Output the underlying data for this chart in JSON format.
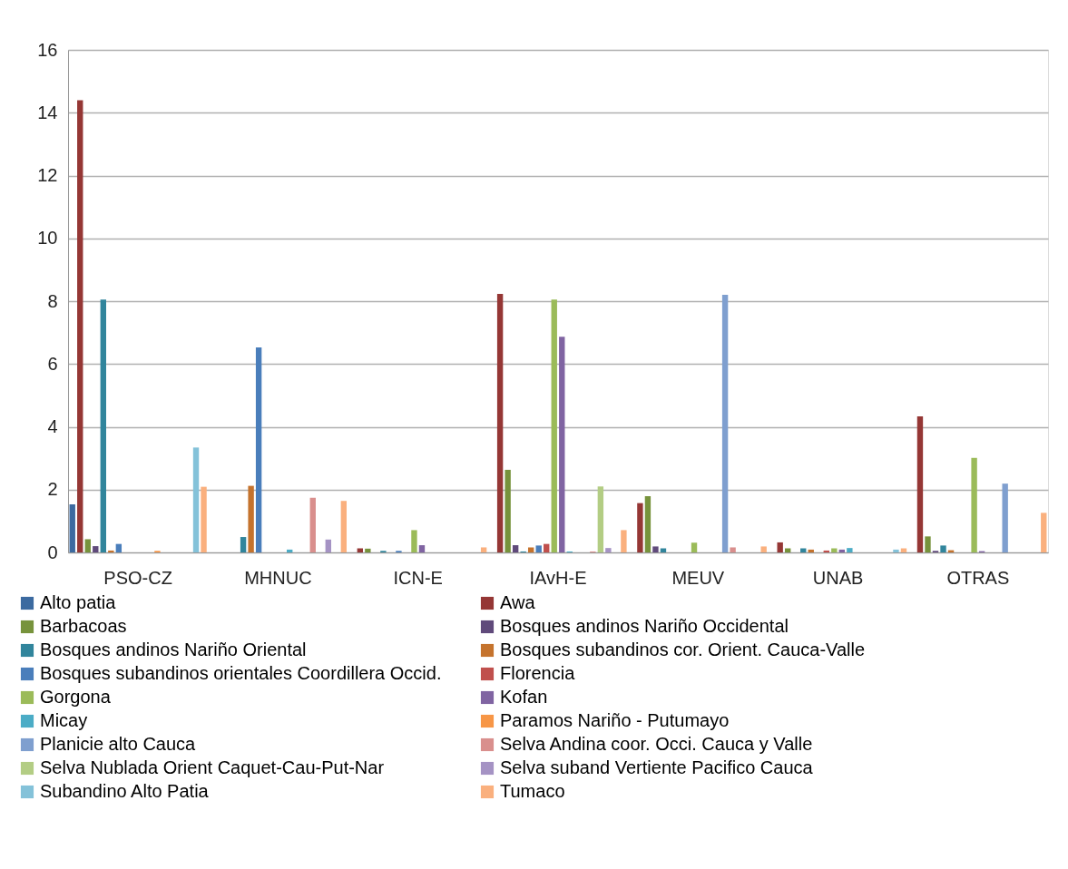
{
  "chart_data": {
    "type": "bar",
    "categories": [
      "PSO-CZ",
      "MHNUC",
      "ICN-E",
      "IAvH-E",
      "MEUV",
      "UNAB",
      "OTRAS"
    ],
    "series": [
      {
        "name": "Alto patia",
        "color": "#3c6aa0",
        "values": [
          1.53,
          0,
          0,
          0,
          0,
          0,
          0
        ]
      },
      {
        "name": "Awa",
        "color": "#953735",
        "values": [
          14.4,
          0,
          0.13,
          8.23,
          1.57,
          0.32,
          4.33
        ]
      },
      {
        "name": "Barbacoas",
        "color": "#77933c",
        "values": [
          0.42,
          0,
          0.12,
          2.63,
          1.79,
          0.13,
          0.51
        ]
      },
      {
        "name": "Bosques andinos Nariño Occidental",
        "color": "#604a7b",
        "values": [
          0.2,
          0,
          0,
          0.23,
          0.19,
          0,
          0.05
        ]
      },
      {
        "name": "Bosques andinos Nariño Oriental",
        "color": "#31859c",
        "values": [
          8.05,
          0.49,
          0.05,
          0.03,
          0.13,
          0.13,
          0.22
        ]
      },
      {
        "name": "Bosques subandinos cor. Orient. Cauca-Valle",
        "color": "#c5732d",
        "values": [
          0.06,
          2.12,
          0,
          0.16,
          0,
          0.09,
          0.07
        ]
      },
      {
        "name": "Bosques subandinos orientales Coordillera Occid.",
        "color": "#4a7ebb",
        "values": [
          0.27,
          6.53,
          0.05,
          0.22,
          0,
          0,
          0
        ]
      },
      {
        "name": "Florencia",
        "color": "#c0504d",
        "values": [
          0,
          0,
          0,
          0.27,
          0,
          0.06,
          0
        ]
      },
      {
        "name": "Gorgona",
        "color": "#9bbb59",
        "values": [
          0,
          0,
          0.71,
          8.05,
          0.31,
          0.13,
          3.01
        ]
      },
      {
        "name": "Kofan",
        "color": "#8064a2",
        "values": [
          0,
          0,
          0.23,
          6.87,
          0,
          0.09,
          0.04
        ]
      },
      {
        "name": "Micay",
        "color": "#4bacc6",
        "values": [
          0,
          0.09,
          0,
          0.03,
          0,
          0.14,
          0
        ]
      },
      {
        "name": "Paramos Nariño - Putumayo",
        "color": "#f79646",
        "values": [
          0.05,
          0,
          0,
          0,
          0,
          0,
          0
        ]
      },
      {
        "name": "Planicie alto Cauca",
        "color": "#7f9fcf",
        "values": [
          0,
          0,
          0,
          0,
          8.2,
          0,
          2.19
        ]
      },
      {
        "name": "Selva Andina coor. Occi. Cauca y Valle",
        "color": "#d98f8d",
        "values": [
          0,
          1.74,
          0,
          0.03,
          0.16,
          0,
          0
        ]
      },
      {
        "name": "Selva Nublada Orient Caquet-Cau-Put-Nar",
        "color": "#b3cd84",
        "values": [
          0,
          0,
          0,
          2.1,
          0,
          0,
          0
        ]
      },
      {
        "name": "Selva suband Vertiente Pacifico Cauca",
        "color": "#a593c4",
        "values": [
          0,
          0.41,
          0,
          0.14,
          0,
          0,
          0
        ]
      },
      {
        "name": "Subandino Alto Patia",
        "color": "#84c2d9",
        "values": [
          3.34,
          0,
          0,
          0,
          0,
          0.09,
          0
        ]
      },
      {
        "name": "Tumaco",
        "color": "#fab07e",
        "values": [
          2.09,
          1.64,
          0.16,
          0.71,
          0.19,
          0.13,
          1.26
        ]
      }
    ],
    "ylim": [
      0,
      16
    ],
    "yticks": [
      0,
      2,
      4,
      6,
      8,
      10,
      12,
      14,
      16
    ],
    "grid": "y",
    "legend": "bottom"
  }
}
